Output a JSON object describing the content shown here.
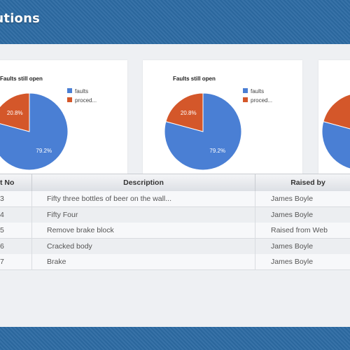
{
  "header": {
    "title": "lutions"
  },
  "charts": [
    {
      "title": "Faults still open",
      "legend": [
        "faults",
        "proced..."
      ],
      "slices": [
        {
          "label": "79.2%",
          "value": 79.2,
          "color": "#4a7fd4"
        },
        {
          "label": "20.8%",
          "value": 20.8,
          "color": "#d4572a"
        }
      ]
    },
    {
      "title": "Faults still open",
      "legend": [
        "faults",
        "proced..."
      ],
      "slices": [
        {
          "label": "79.2%",
          "value": 79.2,
          "color": "#4a7fd4"
        },
        {
          "label": "20.8%",
          "value": 20.8,
          "color": "#d4572a"
        }
      ]
    },
    {
      "title": "",
      "legend": [],
      "slices": [
        {
          "label": "",
          "value": 79.2,
          "color": "#4a7fd4"
        },
        {
          "label": "",
          "value": 20.8,
          "color": "#d4572a"
        }
      ]
    }
  ],
  "chart_data": [
    {
      "type": "pie",
      "title": "Faults still open",
      "categories": [
        "faults",
        "proced..."
      ],
      "values": [
        79.2,
        20.8
      ]
    },
    {
      "type": "pie",
      "title": "Faults still open",
      "categories": [
        "faults",
        "proced..."
      ],
      "values": [
        79.2,
        20.8
      ]
    }
  ],
  "table": {
    "headers": [
      "t No",
      "Description",
      "Raised by"
    ],
    "rows": [
      {
        "no": "3",
        "description": "Fifty three bottles of beer on the wall...",
        "raised_by": "James Boyle"
      },
      {
        "no": "4",
        "description": "Fifty Four",
        "raised_by": "James Boyle"
      },
      {
        "no": "5",
        "description": "Remove brake block",
        "raised_by": "Raised from Web"
      },
      {
        "no": "6",
        "description": "Cracked body",
        "raised_by": "James Boyle"
      },
      {
        "no": "7",
        "description": "Brake",
        "raised_by": "James Boyle"
      }
    ]
  }
}
